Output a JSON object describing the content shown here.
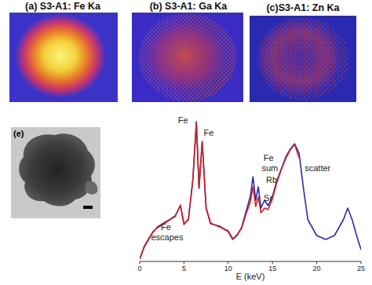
{
  "panels": [
    {
      "title": "(a) S3-A1: Fe Ka"
    },
    {
      "title": "(b) S3-A1: Ga Ka"
    },
    {
      "title": "(c)S3-A1: Zn Ka"
    }
  ],
  "image": {
    "label": "(e)"
  },
  "chart_data": {
    "type": "line",
    "x": [
      0,
      0.5,
      1,
      1.5,
      2,
      3,
      4,
      4.6,
      5,
      5.5,
      6,
      6.4,
      6.7,
      7.06,
      7.5,
      8,
      9,
      10,
      10.5,
      11,
      11.5,
      12,
      12.5,
      12.8,
      13.1,
      13.4,
      13.7,
      14.1,
      14.5,
      15,
      15.5,
      16,
      16.5,
      17,
      17.5,
      18,
      18.5,
      19,
      19.5,
      20,
      21,
      22,
      23,
      23.5,
      24,
      24.5,
      25
    ],
    "series": [
      {
        "color": "#2a2aa8",
        "values": [
          3,
          18,
          28,
          38,
          43,
          50,
          58,
          71,
          48,
          53,
          103,
          178,
          93,
          153,
          68,
          48,
          45,
          38,
          28,
          33,
          43,
          63,
          83,
          108,
          78,
          95,
          68,
          78,
          71,
          83,
          103,
          118,
          133,
          143,
          150,
          138,
          93,
          53,
          43,
          33,
          28,
          33,
          53,
          68,
          53,
          33,
          15
        ]
      },
      {
        "color": "#cc2222",
        "values": [
          3,
          19,
          29,
          37,
          44,
          51,
          57,
          72,
          47,
          54,
          104,
          176,
          95,
          152,
          69,
          49,
          44,
          39,
          29,
          34,
          42,
          60,
          76,
          95,
          70,
          82,
          62,
          68,
          66,
          80,
          101,
          117,
          131,
          142,
          149,
          132,
          null,
          null,
          null,
          null,
          null,
          null,
          null,
          null,
          null,
          null,
          null
        ]
      }
    ],
    "x_label": "E (keV)",
    "xlim": [
      0,
      25
    ],
    "xticks": [
      0,
      5,
      10,
      15,
      20,
      25
    ],
    "ylim": [
      0,
      190
    ],
    "tick_labels": "x",
    "annotations": [
      {
        "text": "Fe escapes",
        "x": 3.1,
        "y": 40
      },
      {
        "text": "Fe",
        "x": 4.9,
        "y": 176
      },
      {
        "text": "Fe",
        "x": 7.8,
        "y": 160
      },
      {
        "text": "Fe sum",
        "x": 14.7,
        "y": 128
      },
      {
        "text": "Rb",
        "x": 14.9,
        "y": 100
      },
      {
        "text": "Sr",
        "x": 14.5,
        "y": 77
      },
      {
        "text": "scatter",
        "x": 20.1,
        "y": 115
      }
    ]
  }
}
